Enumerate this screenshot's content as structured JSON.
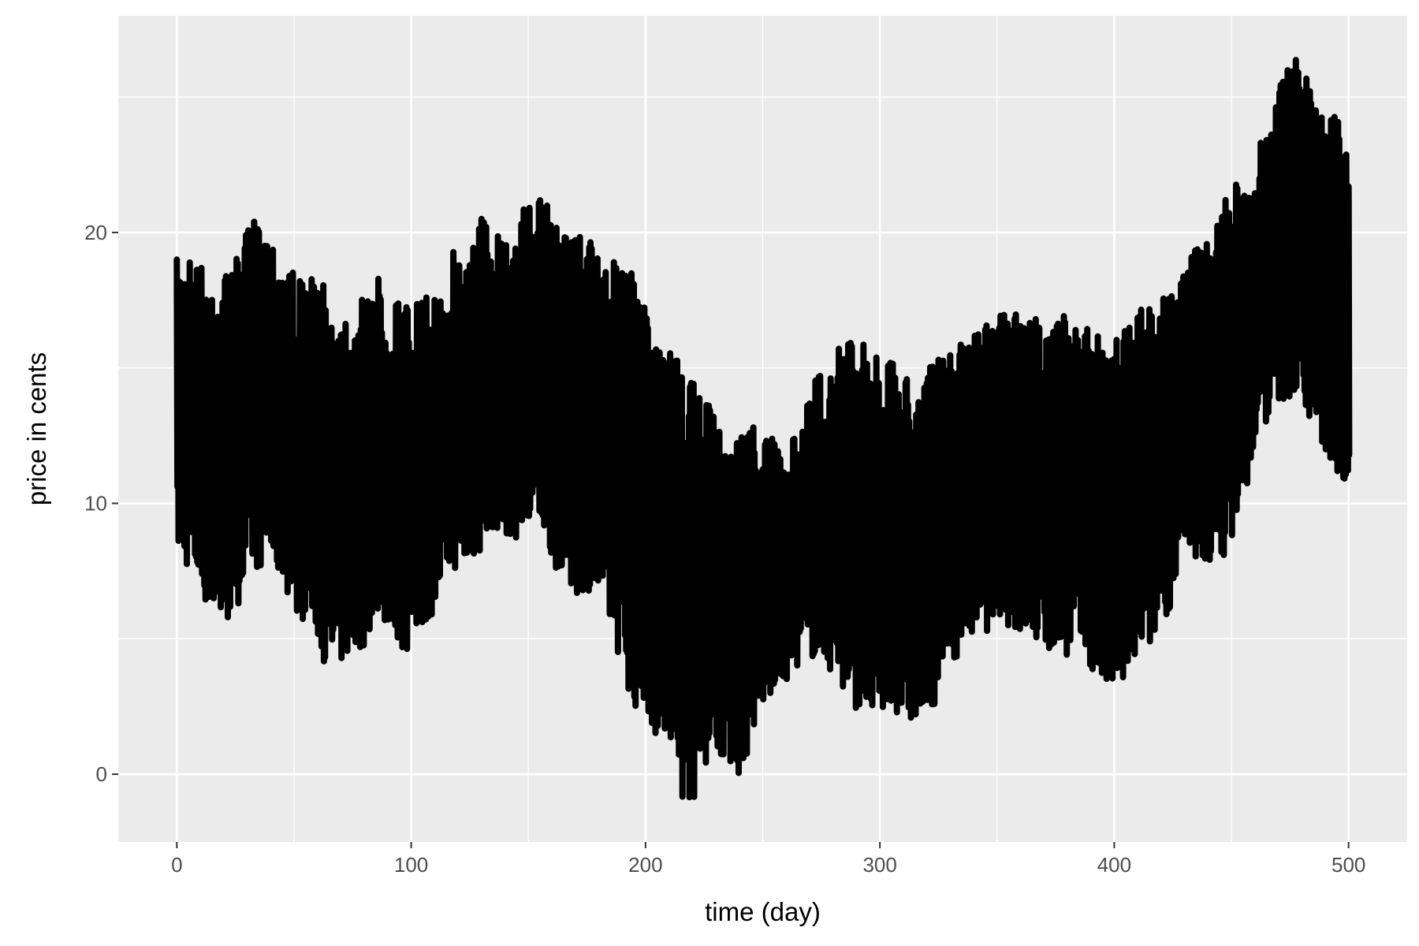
{
  "chart_data": {
    "type": "line",
    "title": "",
    "xlabel": "time (day)",
    "ylabel": "price in cents",
    "xlim": [
      -25,
      525
    ],
    "ylim": [
      -2.5,
      28
    ],
    "x_ticks": [
      0,
      100,
      200,
      300,
      400,
      500
    ],
    "x_minor_ticks": [
      50,
      150,
      250,
      350,
      450
    ],
    "y_ticks": [
      0,
      10,
      20
    ],
    "y_minor_ticks": [
      5,
      15,
      25
    ],
    "x_tick_labels": [
      "0",
      "100",
      "200",
      "300",
      "400",
      "500"
    ],
    "y_tick_labels": [
      "0",
      "10",
      "20"
    ],
    "grid": true,
    "legend": "none",
    "colors": {
      "panel_background": "#ebebeb",
      "grid": "#ffffff",
      "line": "#000000",
      "tick_text": "#4d4d4d",
      "axis_text": "#000000"
    },
    "series": [
      {
        "x_start": 0,
        "x_step": 0.5,
        "description_of_envelope": null,
        "upper": [
          19,
          19.3,
          18.6,
          18.5,
          19.1,
          20.6,
          20.2,
          19.5,
          18.3,
          18.5,
          17.8,
          17.3,
          17.3,
          18.6,
          17.9,
          17.4,
          17.6,
          17.6,
          19.4,
          19.4,
          20.8,
          20.1,
          20.6,
          21.1,
          21.3,
          20.5,
          20.2,
          19.9,
          19.5,
          18.7,
          18.7,
          16.7,
          15.8,
          15.2,
          14.4,
          13.6,
          12.5,
          12.6,
          13.1,
          12.5,
          11.5,
          13.2,
          14.7,
          15.3,
          16.3,
          16.3,
          15.6,
          15.2,
          14.9,
          14.9,
          15.3,
          15.6,
          16.2,
          16.7,
          17.1,
          17.1,
          16.9,
          16.9,
          17.1,
          16.6,
          16.4,
          16.5,
          16.7,
          17.3,
          17.6,
          17.8,
          18.2,
          19.6,
          20.1,
          21.3,
          22.1,
          22.8,
          25.2,
          26.5,
          26.3,
          25.3,
          24.8,
          22.6
        ],
        "lower": [
          8.1,
          7.3,
          6.1,
          5.2,
          6.3,
          7.5,
          7.7,
          6.9,
          5.8,
          5.4,
          3.4,
          4.2,
          4.3,
          5.9,
          5.3,
          4.4,
          5.3,
          6.1,
          7.6,
          7.4,
          8.2,
          9,
          8.7,
          8.6,
          8.9,
          7.4,
          6.6,
          6.8,
          5.9,
          4.4,
          2.4,
          1.9,
          0.7,
          -0.9,
          -1,
          0.9,
          0.6,
          -0.2,
          1.8,
          2.8,
          3.4,
          4.2,
          4.3,
          3.7,
          2.5,
          2.4,
          1.5,
          2.4,
          1.8,
          1.7,
          2.9,
          4.2,
          4.9,
          5.1,
          5.9,
          5.1,
          4.9,
          4.5,
          4.2,
          4.6,
          3.9,
          2.9,
          2.8,
          4.2,
          4.7,
          5.7,
          7.8,
          7.6,
          7.7,
          8.2,
          9.9,
          12.3,
          13.5,
          13.9,
          13.6,
          12.2,
          11.2,
          10.4
        ]
      }
    ]
  }
}
